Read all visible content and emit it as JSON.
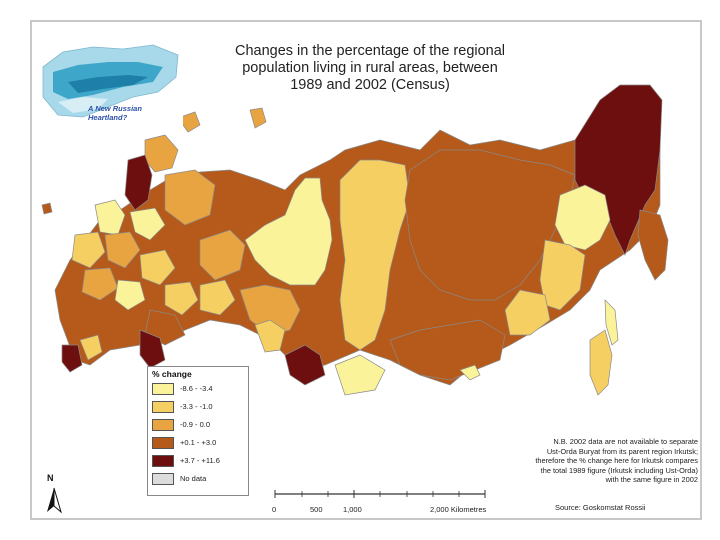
{
  "title": {
    "line1": "Changes in the percentage of the regional",
    "line2": "population living in rural areas, between",
    "line3": "1989 and 2002 (Census)"
  },
  "inset": {
    "caption_line1": "A New Russian",
    "caption_line2": "Heartland?"
  },
  "legend": {
    "title": "% change",
    "items": [
      {
        "label": "-8.6 - -3.4",
        "color": "#fbf39a"
      },
      {
        "label": "-3.3 - -1.0",
        "color": "#f6cf63"
      },
      {
        "label": "-0.9 - 0.0",
        "color": "#e8a440"
      },
      {
        "label": "+0.1 - +3.0",
        "color": "#b55a1a"
      },
      {
        "label": "+3.7 - +11.6",
        "color": "#6e0f0f"
      },
      {
        "label": "No data",
        "color": "#dcdcdc"
      }
    ]
  },
  "note": {
    "line1": "N.B. 2002 data are not available to separate",
    "line2": "Ust-Orda Buryat from its parent region Irkutsk;",
    "line3": "therefore the % change here for Irkutsk compares",
    "line4": "the total 1989 figure (Irkutsk including Ust-Orda)",
    "line5": "with the same figure in 2002"
  },
  "scale": {
    "ticks": [
      "0",
      "500",
      "1,000",
      "2,000 Kilometres"
    ]
  },
  "north_label": "N",
  "source": "Source: Goskomstat Rossii",
  "colors": {
    "lightest": "#fbf39a",
    "light": "#f6cf63",
    "mid": "#e8a440",
    "dark": "#b55a1a",
    "darkest": "#6e0f0f"
  }
}
